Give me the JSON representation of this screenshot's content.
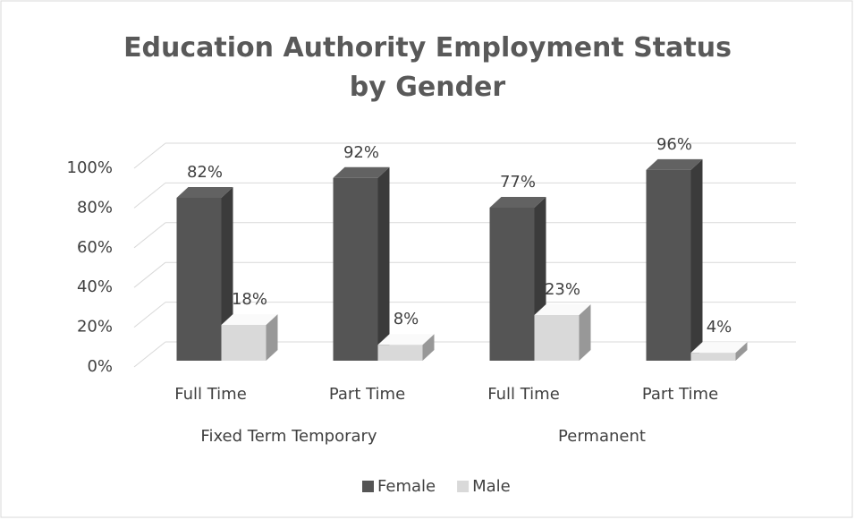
{
  "chart_data": {
    "type": "bar3d",
    "title": "Education Authority Employment Status by Gender",
    "category_groups": [
      {
        "name": "Fixed Term Temporary",
        "categories": [
          "Full Time",
          "Part Time"
        ]
      },
      {
        "name": "Permanent",
        "categories": [
          "Full Time",
          "Part Time"
        ]
      }
    ],
    "series": [
      {
        "name": "Female",
        "color": "#555555",
        "values": [
          82,
          92,
          77,
          96
        ],
        "value_labels": [
          "82%",
          "92%",
          "77%",
          "96%"
        ]
      },
      {
        "name": "Male",
        "color": "#d9d9d9",
        "values": [
          18,
          8,
          23,
          4
        ],
        "value_labels": [
          "18%",
          "8%",
          "23%",
          "4%"
        ]
      }
    ],
    "ylim": [
      0,
      100
    ],
    "yticks": [
      {
        "value": 0,
        "label": "0%"
      },
      {
        "value": 20,
        "label": "20%"
      },
      {
        "value": 40,
        "label": "40%"
      },
      {
        "value": 60,
        "label": "60%"
      },
      {
        "value": 80,
        "label": "80%"
      },
      {
        "value": 100,
        "label": "100%"
      }
    ],
    "grid": true,
    "legend": "bottom"
  }
}
